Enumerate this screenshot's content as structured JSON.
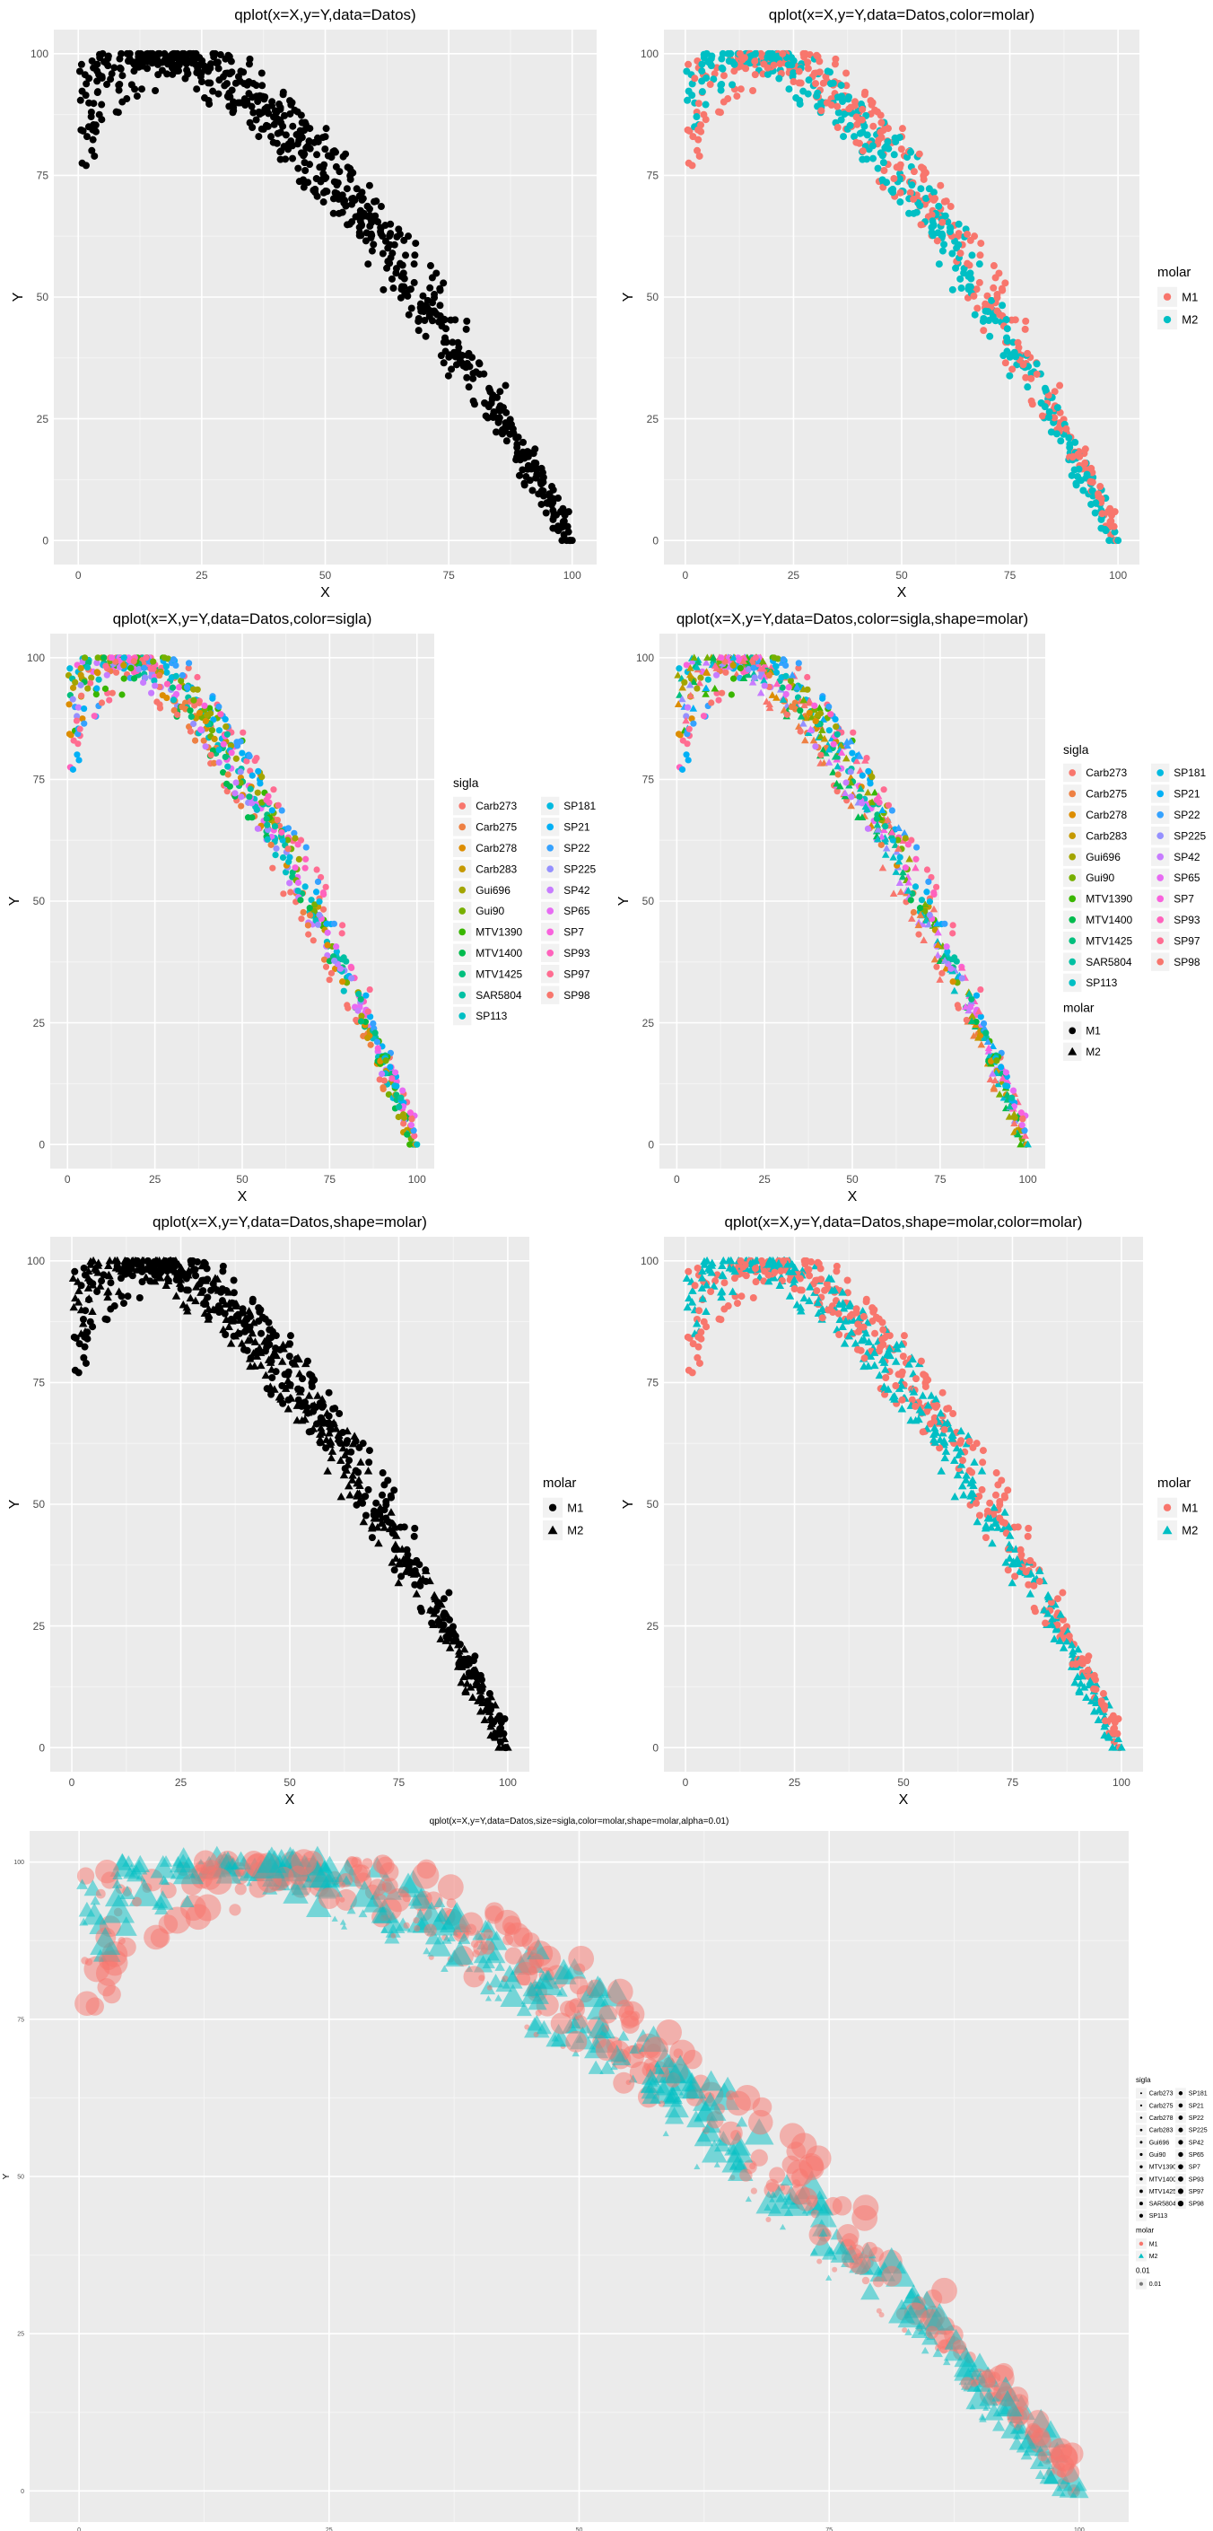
{
  "colors": {
    "panel_bg": "#EBEBEB",
    "grid_major": "#FFFFFF",
    "text": "#000000",
    "tick_text": "#4D4D4D",
    "m1": "#F8766D",
    "m2": "#00BFC4",
    "black": "#000000"
  },
  "chart_data": [
    {
      "id": "p1",
      "type": "scatter",
      "title": "qplot(x=X,y=Y,data=Datos)",
      "xlabel": "X",
      "ylabel": "Y",
      "xlim": [
        0,
        100
      ],
      "ylim": [
        0,
        100
      ],
      "xticks": [
        "0",
        "25",
        "50",
        "75",
        "100"
      ],
      "yticks": [
        "0",
        "25",
        "50",
        "75",
        "100"
      ],
      "color_by": "none",
      "shape_by": "none",
      "series": [
        {
          "name": "all",
          "x_range": [
            0,
            100
          ],
          "description_points": "dense band from (0,~80-100) rising to peak ~100 at X 10-30 then decreasing to (100,0)"
        }
      ],
      "legend": null
    },
    {
      "id": "p2",
      "type": "scatter",
      "title": "qplot(x=X,y=Y,data=Datos,color=molar)",
      "xlabel": "X",
      "ylabel": "Y",
      "xlim": [
        0,
        100
      ],
      "ylim": [
        0,
        100
      ],
      "xticks": [
        "0",
        "25",
        "50",
        "75",
        "100"
      ],
      "yticks": [
        "0",
        "25",
        "50",
        "75",
        "100"
      ],
      "color_by": "molar",
      "shape_by": "none",
      "legend": {
        "title": "molar",
        "entries": [
          {
            "label": "M1",
            "color": "#F8766D",
            "shape": "circle"
          },
          {
            "label": "M2",
            "color": "#00BFC4",
            "shape": "circle"
          }
        ]
      }
    },
    {
      "id": "p3",
      "type": "scatter",
      "title": "qplot(x=X,y=Y,data=Datos,color=sigla)",
      "xlabel": "X",
      "ylabel": "Y",
      "xlim": [
        0,
        100
      ],
      "ylim": [
        0,
        100
      ],
      "xticks": [
        "0",
        "25",
        "50",
        "75",
        "100"
      ],
      "yticks": [
        "0",
        "25",
        "50",
        "75",
        "100"
      ],
      "color_by": "sigla",
      "shape_by": "none",
      "legend": {
        "title": "sigla",
        "entries": [
          {
            "label": "Carb273",
            "color": "#F8766D",
            "shape": "circle"
          },
          {
            "label": "Carb275",
            "color": "#EE8043",
            "shape": "circle"
          },
          {
            "label": "Carb278",
            "color": "#DD8D00",
            "shape": "circle"
          },
          {
            "label": "Carb283",
            "color": "#C59900",
            "shape": "circle"
          },
          {
            "label": "Gui696",
            "color": "#A3A500",
            "shape": "circle"
          },
          {
            "label": "Gui90",
            "color": "#77AF00",
            "shape": "circle"
          },
          {
            "label": "MTV1390",
            "color": "#39B600",
            "shape": "circle"
          },
          {
            "label": "MTV1400",
            "color": "#00BB4E",
            "shape": "circle"
          },
          {
            "label": "MTV1425",
            "color": "#00BF7D",
            "shape": "circle"
          },
          {
            "label": "SAR5804",
            "color": "#00C0A3",
            "shape": "circle"
          },
          {
            "label": "SP113",
            "color": "#00BFC4",
            "shape": "circle"
          },
          {
            "label": "SP181",
            "color": "#00BAE0",
            "shape": "circle"
          },
          {
            "label": "SP21",
            "color": "#00B0F6",
            "shape": "circle"
          },
          {
            "label": "SP22",
            "color": "#35A2FF",
            "shape": "circle"
          },
          {
            "label": "SP225",
            "color": "#9590FF",
            "shape": "circle"
          },
          {
            "label": "SP42",
            "color": "#C77CFF",
            "shape": "circle"
          },
          {
            "label": "SP65",
            "color": "#E76BF3",
            "shape": "circle"
          },
          {
            "label": "SP7",
            "color": "#F962DD",
            "shape": "circle"
          },
          {
            "label": "SP93",
            "color": "#FF62BC",
            "shape": "circle"
          },
          {
            "label": "SP97",
            "color": "#FF6C91",
            "shape": "circle"
          },
          {
            "label": "SP98",
            "color": "#F8766D",
            "shape": "circle"
          }
        ]
      }
    },
    {
      "id": "p4",
      "type": "scatter",
      "title": "qplot(x=X,y=Y,data=Datos,color=sigla,shape=molar)",
      "xlabel": "X",
      "ylabel": "Y",
      "xlim": [
        0,
        100
      ],
      "ylim": [
        0,
        100
      ],
      "xticks": [
        "0",
        "25",
        "50",
        "75",
        "100"
      ],
      "yticks": [
        "0",
        "25",
        "50",
        "75",
        "100"
      ],
      "color_by": "sigla",
      "shape_by": "molar",
      "legend": {
        "title": "sigla",
        "entries": [
          {
            "label": "Carb273",
            "color": "#F8766D",
            "shape": "circle"
          },
          {
            "label": "Carb275",
            "color": "#EE8043",
            "shape": "circle"
          },
          {
            "label": "Carb278",
            "color": "#DD8D00",
            "shape": "circle"
          },
          {
            "label": "Carb283",
            "color": "#C59900",
            "shape": "circle"
          },
          {
            "label": "Gui696",
            "color": "#A3A500",
            "shape": "circle"
          },
          {
            "label": "Gui90",
            "color": "#77AF00",
            "shape": "circle"
          },
          {
            "label": "MTV1390",
            "color": "#39B600",
            "shape": "circle"
          },
          {
            "label": "MTV1400",
            "color": "#00BB4E",
            "shape": "circle"
          },
          {
            "label": "MTV1425",
            "color": "#00BF7D",
            "shape": "circle"
          },
          {
            "label": "SAR5804",
            "color": "#00C0A3",
            "shape": "circle"
          },
          {
            "label": "SP113",
            "color": "#00BFC4",
            "shape": "circle"
          },
          {
            "label": "SP181",
            "color": "#00BAE0",
            "shape": "circle"
          },
          {
            "label": "SP21",
            "color": "#00B0F6",
            "shape": "circle"
          },
          {
            "label": "SP22",
            "color": "#35A2FF",
            "shape": "circle"
          },
          {
            "label": "SP225",
            "color": "#9590FF",
            "shape": "circle"
          },
          {
            "label": "SP42",
            "color": "#C77CFF",
            "shape": "circle"
          },
          {
            "label": "SP65",
            "color": "#E76BF3",
            "shape": "circle"
          },
          {
            "label": "SP7",
            "color": "#F962DD",
            "shape": "circle"
          },
          {
            "label": "SP93",
            "color": "#FF62BC",
            "shape": "circle"
          },
          {
            "label": "SP97",
            "color": "#FF6C91",
            "shape": "circle"
          },
          {
            "label": "SP98",
            "color": "#F8766D",
            "shape": "circle"
          }
        ],
        "shape_legend": {
          "title": "molar",
          "entries": [
            {
              "label": "M1",
              "color": "#000000",
              "shape": "circle"
            },
            {
              "label": "M2",
              "color": "#000000",
              "shape": "triangle"
            }
          ]
        }
      }
    },
    {
      "id": "p5",
      "type": "scatter",
      "title": "qplot(x=X,y=Y,data=Datos,shape=molar)",
      "xlabel": "X",
      "ylabel": "Y",
      "xlim": [
        0,
        100
      ],
      "ylim": [
        0,
        100
      ],
      "xticks": [
        "0",
        "25",
        "50",
        "75",
        "100"
      ],
      "yticks": [
        "0",
        "25",
        "50",
        "75",
        "100"
      ],
      "color_by": "none",
      "shape_by": "molar",
      "legend": {
        "title": "molar",
        "entries": [
          {
            "label": "M1",
            "color": "#000000",
            "shape": "circle"
          },
          {
            "label": "M2",
            "color": "#000000",
            "shape": "triangle"
          }
        ]
      }
    },
    {
      "id": "p6",
      "type": "scatter",
      "title": "qplot(x=X,y=Y,data=Datos,shape=molar,color=molar)",
      "xlabel": "X",
      "ylabel": "Y",
      "xlim": [
        0,
        100
      ],
      "ylim": [
        0,
        100
      ],
      "xticks": [
        "0",
        "25",
        "50",
        "75",
        "100"
      ],
      "yticks": [
        "0",
        "25",
        "50",
        "75",
        "100"
      ],
      "color_by": "molar",
      "shape_by": "molar",
      "legend": {
        "title": "molar",
        "entries": [
          {
            "label": "M1",
            "color": "#F8766D",
            "shape": "circle"
          },
          {
            "label": "M2",
            "color": "#00BFC4",
            "shape": "triangle"
          }
        ]
      }
    },
    {
      "id": "p7",
      "type": "scatter",
      "title": "qplot(x=X,y=Y,data=Datos,size=sigla,color=molar,shape=molar,alpha=0.01)",
      "xlabel": "X",
      "ylabel": "Y",
      "xlim": [
        0,
        100
      ],
      "ylim": [
        0,
        100
      ],
      "xticks": [
        "0",
        "25",
        "50",
        "75",
        "100"
      ],
      "yticks": [
        "0",
        "25",
        "50",
        "75",
        "100"
      ],
      "color_by": "molar",
      "shape_by": "molar",
      "size_by": "sigla",
      "alpha": 0.5,
      "legend": {
        "title": "sigla",
        "entries": [
          {
            "label": "Carb273"
          },
          {
            "label": "Carb275"
          },
          {
            "label": "Carb278"
          },
          {
            "label": "Carb283"
          },
          {
            "label": "Gui696"
          },
          {
            "label": "Gui90"
          },
          {
            "label": "MTV1390"
          },
          {
            "label": "MTV1400"
          },
          {
            "label": "MTV1425"
          },
          {
            "label": "SAR5804"
          },
          {
            "label": "SP113"
          },
          {
            "label": "SP181"
          },
          {
            "label": "SP21"
          },
          {
            "label": "SP22"
          },
          {
            "label": "SP225"
          },
          {
            "label": "SP42"
          },
          {
            "label": "SP65"
          },
          {
            "label": "SP7"
          },
          {
            "label": "SP93"
          },
          {
            "label": "SP97"
          },
          {
            "label": "SP98"
          }
        ],
        "shape_legend": {
          "title": "molar",
          "entries": [
            {
              "label": "M1",
              "color": "#F8766D",
              "shape": "circle"
            },
            {
              "label": "M2",
              "color": "#00BFC4",
              "shape": "triangle"
            }
          ]
        },
        "alpha_legend": {
          "title": "0.01",
          "entries": [
            {
              "label": "0.01"
            }
          ]
        }
      }
    }
  ]
}
